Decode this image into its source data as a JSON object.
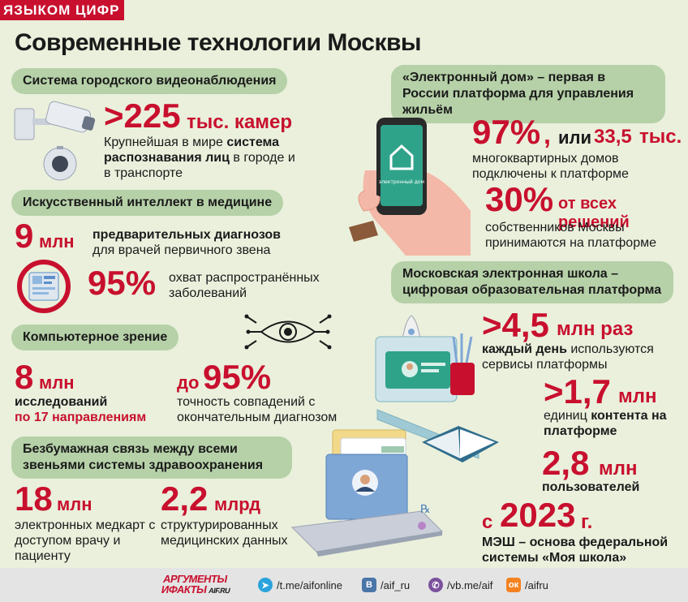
{
  "tag": "ЯЗЫКОМ ЦИФР",
  "title": "Современные технологии Москвы",
  "left": {
    "video": {
      "pill": "Система городского видеонаблюдения",
      "big": ">225",
      "unit": "тыс. камер",
      "text1": "Крупнейшая в мире ",
      "text_bold": "система распознавания лиц",
      "text2": " в городе и в транспорте"
    },
    "ai": {
      "pill": "Искусственный интеллект в медицине",
      "stat1_big": "9",
      "stat1_unit": "млн",
      "stat1_text_bold": "предварительных диагнозов",
      "stat1_text": "для врачей первичного звена",
      "stat2_big": "95%",
      "stat2_text": "охват распространённых заболеваний"
    },
    "vision": {
      "pill": "Компьютерное зрение",
      "stat1_big": "8",
      "stat1_unit": "млн",
      "stat1_text": "исследований",
      "stat1_text_red": "по 17 направлениям",
      "stat2_prefix": "до",
      "stat2_big": "95%",
      "stat2_text": "точность совпадений с окончательным диагнозом"
    },
    "paperless": {
      "pill": "Безбумажная связь между всеми звеньями системы здравоохранения",
      "stat1_big": "18",
      "stat1_unit": "млн",
      "stat1_text": "электронных медкарт с доступом врачу и пациенту",
      "stat2_big": "2,2",
      "stat2_unit": "млрд",
      "stat2_text": "структурированных медицинских данных"
    }
  },
  "right": {
    "house": {
      "pill": "«Электронный дом» – первая в России платформа для управления жильём",
      "phone_label": "электронный дом",
      "stat1_big": "97%",
      "stat1_sep": ",",
      "stat1_or": "или",
      "stat1_num": "33,5",
      "stat1_unit": "тыс.",
      "stat1_text": "многоквартирных домов подключены к платформе",
      "stat2_big": "30%",
      "stat2_suffix": "от всех решений",
      "stat2_text": "собственников Москвы принимаются на платформе"
    },
    "school": {
      "pill": "Московская электронная школа – цифровая образовательная платформа",
      "stat1_big": ">4,5",
      "stat1_unit": "млн раз",
      "stat1_text_bold": "каждый день",
      "stat1_text": " используются сервисы платформы",
      "stat2_big": ">1,7",
      "stat2_unit": "млн",
      "stat2_text1": "единиц ",
      "stat2_text_bold": "контента на платформе",
      "stat3_big": "2,8",
      "stat3_unit": "млн",
      "stat3_text": "пользователей",
      "stat4_prefix": "с",
      "stat4_big": "2023",
      "stat4_unit": "г.",
      "stat4_text": "МЭШ – основа федеральной системы «Моя школа»"
    }
  },
  "footer": {
    "logo_line1": "АРГУМЕНТЫ",
    "logo_line2": "ИФАКТЫ",
    "logo_domain": "AIF.RU",
    "links": [
      {
        "icon": "telegram-icon",
        "label": "/t.me/aifonline"
      },
      {
        "icon": "vk-icon",
        "label": "/aif_ru"
      },
      {
        "icon": "viber-icon",
        "label": "/vb.me/aif"
      },
      {
        "icon": "ok-icon",
        "label": "/aifru"
      }
    ]
  },
  "colors": {
    "accent": "#c8102e",
    "pill": "#b6d1a8",
    "background": "#eaf0dc",
    "dark": "#1a1a1a"
  }
}
